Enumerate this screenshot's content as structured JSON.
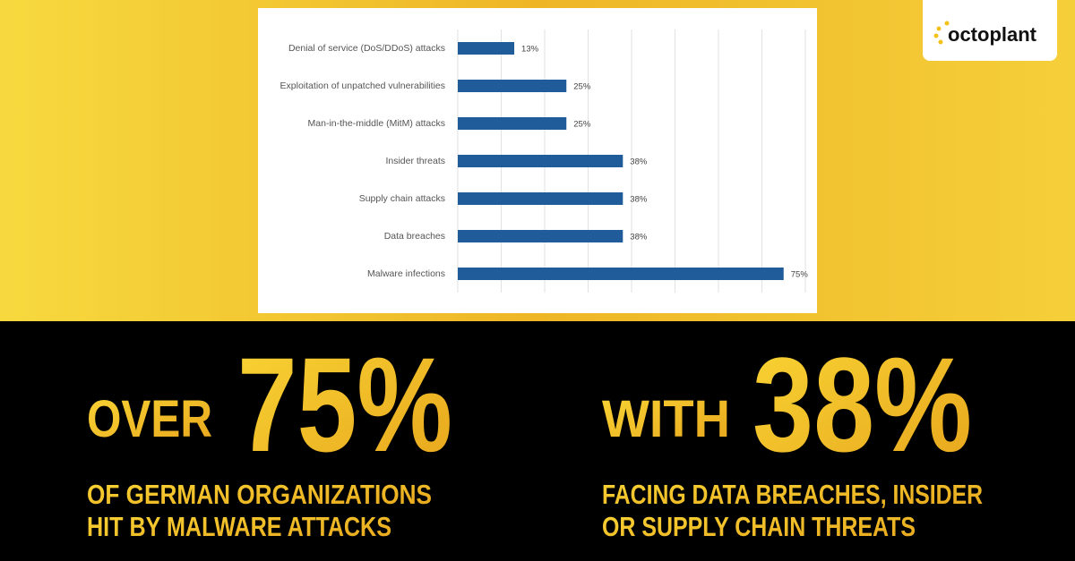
{
  "chart_data": {
    "type": "hbar",
    "categories": [
      "Denial of service (DoS/DDoS) attacks",
      "Exploitation of unpatched vulnerabilities",
      "Man-in-the-middle (MitM) attacks",
      "Insider threats",
      "Supply chain attacks",
      "Data breaches",
      "Malware infections"
    ],
    "values": [
      13,
      25,
      25,
      38,
      38,
      38,
      75
    ],
    "value_labels": [
      "13%",
      "25%",
      "25%",
      "38%",
      "38%",
      "38%",
      "75%"
    ],
    "color": "#1f5c99",
    "xlim": [
      0,
      80
    ],
    "xticks": [
      0,
      10,
      20,
      30,
      40,
      50,
      60,
      70,
      80
    ],
    "grid": true
  },
  "logo": "octoplant",
  "stats": [
    {
      "lead": "OVER",
      "figure": "75%",
      "lines": [
        "OF GERMAN ORGANIZATIONS",
        "HIT BY MALWARE ATTACKS"
      ]
    },
    {
      "lead": "WITH",
      "figure": "38%",
      "lines": [
        "FACING DATA BREACHES, INSIDER",
        "OR SUPPLY CHAIN THREATS"
      ]
    }
  ]
}
